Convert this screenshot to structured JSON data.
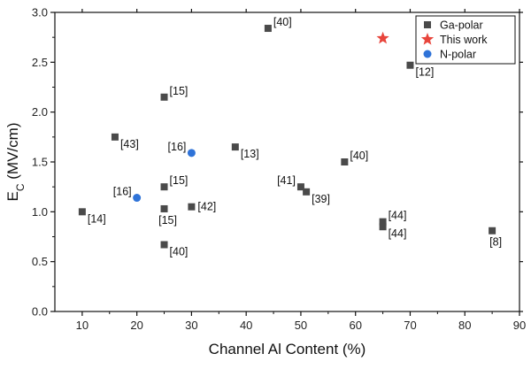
{
  "chart_data": {
    "type": "scatter",
    "xlabel": "Channel Al Content (%)",
    "ylabel_main": "E",
    "ylabel_sub": "C",
    "ylabel_unit": " (MV/cm)",
    "xlim": [
      5,
      90
    ],
    "ylim": [
      0.0,
      3.0
    ],
    "x_ticks": [
      "10",
      "20",
      "30",
      "40",
      "50",
      "60",
      "70",
      "80",
      "90"
    ],
    "y_ticks": [
      "0.0",
      "0.5",
      "1.0",
      "1.5",
      "2.0",
      "2.5",
      "3.0"
    ],
    "grid": false,
    "legend_position": "top-right",
    "legend": [
      {
        "name": "Ga-polar",
        "marker": "square"
      },
      {
        "name": "This work",
        "marker": "star"
      },
      {
        "name": "N-polar",
        "marker": "circle"
      }
    ],
    "colors": {
      "ga_polar": "#4a4a4a",
      "this_work": "#e8453c",
      "n_polar": "#2f73d8"
    },
    "series": [
      {
        "name": "Ga-polar",
        "marker": "square",
        "points": [
          {
            "x": 44,
            "y": 2.84,
            "label": "[40]",
            "anchor": "right-up"
          },
          {
            "x": 70,
            "y": 2.47,
            "label": "[12]",
            "anchor": "right-down"
          },
          {
            "x": 25,
            "y": 2.15,
            "label": "[15]",
            "anchor": "right-up"
          },
          {
            "x": 16,
            "y": 1.75,
            "label": "[43]",
            "anchor": "right-down"
          },
          {
            "x": 38,
            "y": 1.65,
            "label": "[13]",
            "anchor": "right-down"
          },
          {
            "x": 58,
            "y": 1.5,
            "label": "[40]",
            "anchor": "right-up"
          },
          {
            "x": 50,
            "y": 1.25,
            "label": "[41]",
            "anchor": "left-up"
          },
          {
            "x": 51,
            "y": 1.2,
            "label": "[39]",
            "anchor": "right-down"
          },
          {
            "x": 25,
            "y": 1.25,
            "label": "[15]",
            "anchor": "right-up"
          },
          {
            "x": 25,
            "y": 1.03,
            "label": "[15]",
            "anchor": "below"
          },
          {
            "x": 30,
            "y": 1.05,
            "label": "[42]",
            "anchor": "right"
          },
          {
            "x": 10,
            "y": 1.0,
            "label": "[14]",
            "anchor": "right-down"
          },
          {
            "x": 25,
            "y": 0.67,
            "label": "[40]",
            "anchor": "right-down"
          },
          {
            "x": 65,
            "y": 0.9,
            "label": "[44]",
            "anchor": "right-up"
          },
          {
            "x": 65,
            "y": 0.85,
            "label": "[44]",
            "anchor": "right-down"
          },
          {
            "x": 85,
            "y": 0.81,
            "label": "[8]",
            "anchor": "below"
          }
        ]
      },
      {
        "name": "This work",
        "marker": "star",
        "points": [
          {
            "x": 65,
            "y": 2.74,
            "label": "",
            "anchor": "none"
          }
        ]
      },
      {
        "name": "N-polar",
        "marker": "circle",
        "points": [
          {
            "x": 30,
            "y": 1.59,
            "label": "[16]",
            "anchor": "left-up"
          },
          {
            "x": 20,
            "y": 1.14,
            "label": "[16]",
            "anchor": "left-up"
          }
        ]
      }
    ]
  }
}
